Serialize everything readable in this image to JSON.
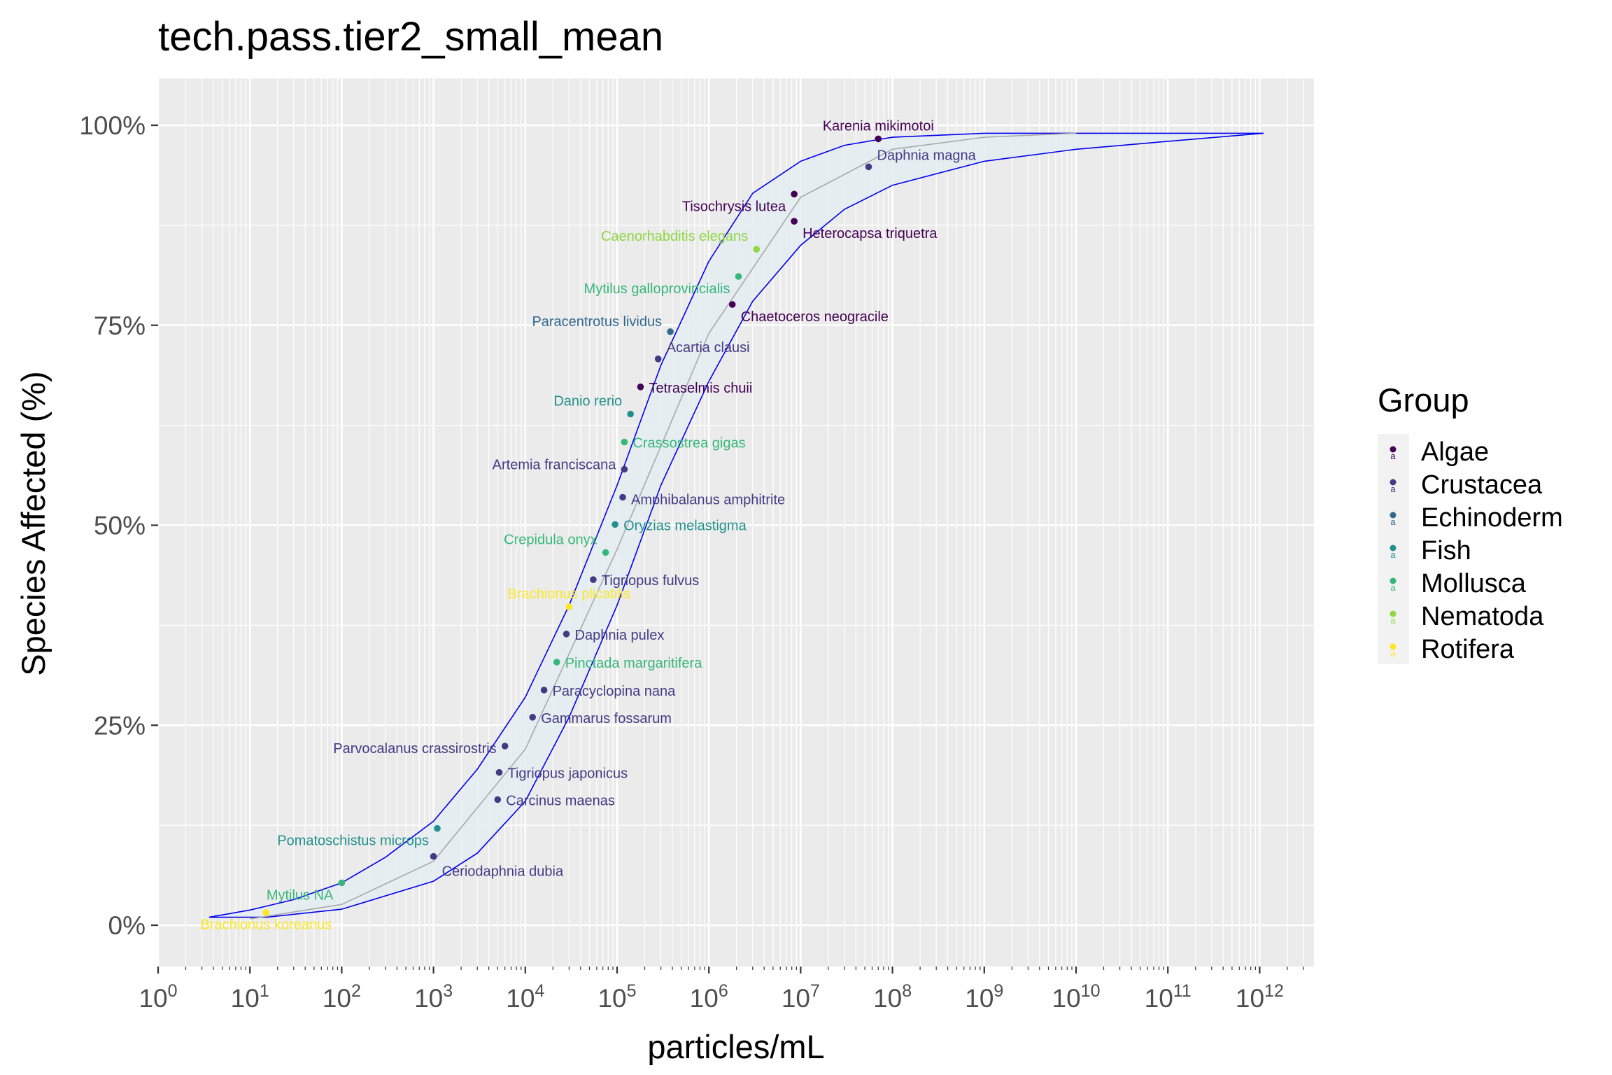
{
  "chart_data": {
    "type": "scatter",
    "title": "tech.pass.tier2_small_mean",
    "xlabel": "particles/mL",
    "ylabel": "Species Affected (%)",
    "x_scale": "log10",
    "xlim_log10": [
      0,
      12.6
    ],
    "ylim": [
      -5,
      105
    ],
    "x_ticks": [
      {
        "base": "10",
        "exp": "0"
      },
      {
        "base": "10",
        "exp": "1"
      },
      {
        "base": "10",
        "exp": "2"
      },
      {
        "base": "10",
        "exp": "3"
      },
      {
        "base": "10",
        "exp": "4"
      },
      {
        "base": "10",
        "exp": "5"
      },
      {
        "base": "10",
        "exp": "6"
      },
      {
        "base": "10",
        "exp": "7"
      },
      {
        "base": "10",
        "exp": "8"
      },
      {
        "base": "10",
        "exp": "9"
      },
      {
        "base": "10",
        "exp": "10"
      },
      {
        "base": "10",
        "exp": "11"
      },
      {
        "base": "10",
        "exp": "12"
      }
    ],
    "y_ticks": [
      {
        "value": 0,
        "label": "0%"
      },
      {
        "value": 25,
        "label": "25%"
      },
      {
        "value": 50,
        "label": "50%"
      },
      {
        "value": 75,
        "label": "75%"
      },
      {
        "value": 100,
        "label": "100%"
      }
    ],
    "grid": true,
    "legend": {
      "title": "Group",
      "position": "right",
      "key_glyph": "a",
      "entries": [
        {
          "name": "Algae",
          "color": "#440154"
        },
        {
          "name": "Crustacea",
          "color": "#443A83"
        },
        {
          "name": "Echinoderm",
          "color": "#31688E"
        },
        {
          "name": "Fish",
          "color": "#21908C"
        },
        {
          "name": "Mollusca",
          "color": "#35B779"
        },
        {
          "name": "Nematoda",
          "color": "#8FD744"
        },
        {
          "name": "Rotifera",
          "color": "#FDE725"
        }
      ]
    },
    "colors": {
      "Algae": "#440154",
      "Crustacea": "#443A83",
      "Echinoderm": "#31688E",
      "Fish": "#21908C",
      "Mollusca": "#35B779",
      "Nematoda": "#8FD744",
      "Rotifera": "#FDE725",
      "band_fill": "#E4EDF2",
      "band_line": "#0000EE",
      "fit_line": "#A9A9A9",
      "panel": "#EBEBEB",
      "grid": "#FFFFFF"
    },
    "points": [
      {
        "species": "Brachionus koreanus",
        "group": "Rotifera",
        "x": 15,
        "y": 1.6
      },
      {
        "species": "Mytilus NA",
        "group": "Mollusca",
        "x": 100,
        "y": 5.3
      },
      {
        "species": "Ceriodaphnia dubia",
        "group": "Crustacea",
        "x": 1000,
        "y": 8.6
      },
      {
        "species": "Pomatoschistus microps",
        "group": "Fish",
        "x": 1100,
        "y": 12.1
      },
      {
        "species": "Carcinus maenas",
        "group": "Crustacea",
        "x": 5000,
        "y": 15.7
      },
      {
        "species": "Tigriopus japonicus",
        "group": "Crustacea",
        "x": 5200,
        "y": 19.1
      },
      {
        "species": "Parvocalanus crassirostris",
        "group": "Crustacea",
        "x": 6000,
        "y": 22.4
      },
      {
        "species": "Gammarus fossarum",
        "group": "Crustacea",
        "x": 12000,
        "y": 26
      },
      {
        "species": "Paracyclopina nana",
        "group": "Crustacea",
        "x": 16000,
        "y": 29.4
      },
      {
        "species": "Pinctada margaritifera",
        "group": "Mollusca",
        "x": 22000,
        "y": 32.9
      },
      {
        "species": "Daphnia pulex",
        "group": "Crustacea",
        "x": 28000,
        "y": 36.4
      },
      {
        "species": "Brachionus plicatilis",
        "group": "Rotifera",
        "x": 30000,
        "y": 39.8
      },
      {
        "species": "Tigriopus fulvus",
        "group": "Crustacea",
        "x": 55000,
        "y": 43.2
      },
      {
        "species": "Crepidula onyx",
        "group": "Mollusca",
        "x": 75000,
        "y": 46.6
      },
      {
        "species": "Oryzias melastigma",
        "group": "Fish",
        "x": 95000,
        "y": 50.1
      },
      {
        "species": "Amphibalanus amphitrite",
        "group": "Crustacea",
        "x": 115000,
        "y": 53.5
      },
      {
        "species": "Artemia franciscana",
        "group": "Crustacea",
        "x": 120000,
        "y": 57
      },
      {
        "species": "Crassostrea gigas",
        "group": "Mollusca",
        "x": 120000,
        "y": 60.4
      },
      {
        "species": "Danio rerio",
        "group": "Fish",
        "x": 140000,
        "y": 63.9
      },
      {
        "species": "Tetraselmis chuii",
        "group": "Algae",
        "x": 180000,
        "y": 67.3
      },
      {
        "species": "Acartia clausi",
        "group": "Crustacea",
        "x": 280000,
        "y": 70.8
      },
      {
        "species": "Paracentrotus lividus",
        "group": "Echinoderm",
        "x": 380000,
        "y": 74.2
      },
      {
        "species": "Chaetoceros neogracile",
        "group": "Algae",
        "x": 1800000,
        "y": 77.6
      },
      {
        "species": "Mytilus galloprovincialis",
        "group": "Mollusca",
        "x": 2100000,
        "y": 81.1
      },
      {
        "species": "Caenorhabditis elegans",
        "group": "Nematoda",
        "x": 3300000,
        "y": 84.5
      },
      {
        "species": "Heterocapsa triquetra",
        "group": "Algae",
        "x": 8500000,
        "y": 88
      },
      {
        "species": "Tisochrysis lutea",
        "group": "Algae",
        "x": 8500000,
        "y": 91.4
      },
      {
        "species": "Daphnia magna",
        "group": "Crustacea",
        "x": 55000000,
        "y": 94.8
      },
      {
        "species": "Karenia mikimotoi",
        "group": "Algae",
        "x": 70000000,
        "y": 98.3
      }
    ],
    "confidence_band": {
      "upper": [
        [
          3.6,
          1.0
        ],
        [
          10,
          1.9
        ],
        [
          30,
          3.2
        ],
        [
          100,
          5.3
        ],
        [
          300,
          8.5
        ],
        [
          1000,
          13.0
        ],
        [
          3000,
          19.5
        ],
        [
          10000,
          28.5
        ],
        [
          30000,
          40.0
        ],
        [
          100000,
          55.0
        ],
        [
          300000,
          70.0
        ],
        [
          1000000,
          83.0
        ],
        [
          3000000,
          91.5
        ],
        [
          10000000,
          95.5
        ],
        [
          30000000,
          97.5
        ],
        [
          100000000,
          98.5
        ],
        [
          1000000000,
          99.0
        ],
        [
          5000000000,
          99.0
        ]
      ],
      "lower": [
        [
          15,
          1.0
        ],
        [
          100,
          2.0
        ],
        [
          1000,
          5.5
        ],
        [
          3000,
          9.0
        ],
        [
          10000,
          15.5
        ],
        [
          30000,
          26.0
        ],
        [
          100000,
          40.0
        ],
        [
          300000,
          55.0
        ],
        [
          1000000,
          68.0
        ],
        [
          3000000,
          78.0
        ],
        [
          10000000,
          85.0
        ],
        [
          30000000,
          89.5
        ],
        [
          100000000,
          92.5
        ],
        [
          1000000000,
          95.5
        ],
        [
          10000000000,
          97.0
        ],
        [
          100000000000,
          98.0
        ],
        [
          1100000000000,
          99.0
        ]
      ],
      "fit": [
        [
          10,
          0.8
        ],
        [
          100,
          2.6
        ],
        [
          1000,
          8.0
        ],
        [
          10000,
          22.0
        ],
        [
          100000,
          47.0
        ],
        [
          1000000,
          74.0
        ],
        [
          10000000,
          91.0
        ],
        [
          100000000,
          97.0
        ],
        [
          1000000000,
          98.5
        ],
        [
          10000000000,
          99.0
        ]
      ]
    }
  }
}
